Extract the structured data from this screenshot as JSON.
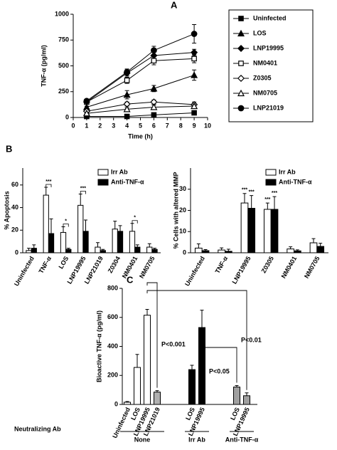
{
  "chart_data": [
    {
      "type": "line",
      "panel": "A",
      "x": [
        1,
        4,
        6,
        9
      ],
      "xlim": [
        0,
        10
      ],
      "xticks": [
        0,
        1,
        2,
        3,
        4,
        5,
        6,
        7,
        8,
        9,
        10
      ],
      "ylim": [
        0,
        1000
      ],
      "yticks": [
        0,
        250,
        500,
        750,
        1000
      ],
      "xlabel": "Time (h)",
      "ylabel": "TNF-α (pg/ml)",
      "legend": "right",
      "series": [
        {
          "name": "Uninfected",
          "color": "#000000",
          "marker": "square",
          "filled": true,
          "values": [
            10,
            10,
            25,
            45
          ],
          "errors": [
            5,
            5,
            8,
            20
          ]
        },
        {
          "name": "LOS",
          "color": "#000000",
          "marker": "triangle",
          "filled": true,
          "values": [
            100,
            220,
            280,
            410
          ],
          "errors": [
            10,
            40,
            30,
            50
          ]
        },
        {
          "name": "LNP19995",
          "color": "#000000",
          "marker": "diamond",
          "filled": true,
          "values": [
            150,
            430,
            600,
            630
          ],
          "errors": [
            15,
            30,
            40,
            30
          ]
        },
        {
          "name": "NM0401",
          "color": "#000000",
          "marker": "square",
          "filled": false,
          "values": [
            150,
            360,
            550,
            570
          ],
          "errors": [
            15,
            30,
            40,
            40
          ]
        },
        {
          "name": "Z0305",
          "color": "#000000",
          "marker": "diamond",
          "filled": false,
          "values": [
            60,
            130,
            150,
            125
          ],
          "errors": [
            10,
            20,
            20,
            25
          ]
        },
        {
          "name": "NM0705",
          "color": "#000000",
          "marker": "triangle",
          "filled": false,
          "values": [
            40,
            80,
            100,
            110
          ],
          "errors": [
            10,
            15,
            20,
            20
          ]
        },
        {
          "name": "LNP21019",
          "color": "#000000",
          "marker": "circle",
          "filled": true,
          "values": [
            160,
            440,
            650,
            810
          ],
          "errors": [
            15,
            30,
            40,
            90
          ]
        }
      ]
    },
    {
      "type": "grouped-bar",
      "panel": "B",
      "categories": [
        "Uninfected",
        "TNF-α",
        "LOS",
        "LNP19995",
        "LNP21019",
        "Z0304",
        "NM0401",
        "NM0705"
      ],
      "ylim": [
        0,
        75
      ],
      "yticks": [
        0,
        20,
        40,
        60
      ],
      "ylabel": "% Apoptosis",
      "legend": "top-right",
      "series": [
        {
          "name": "Irr Ab",
          "color": "#ffffff",
          "values": [
            2,
            51,
            18,
            42,
            5,
            21,
            19,
            5
          ],
          "errors": [
            2,
            7,
            5,
            10,
            4,
            7,
            7,
            3
          ]
        },
        {
          "name": "Anti-TNF-α",
          "color": "#000000",
          "values": [
            4,
            17,
            3,
            19,
            2,
            19,
            5,
            3
          ],
          "errors": [
            3,
            13,
            1,
            10,
            1,
            5,
            2,
            1
          ]
        }
      ],
      "annotations": [
        {
          "text": "***",
          "category": "TNF-α"
        },
        {
          "text": "*",
          "category": "LOS"
        },
        {
          "text": "***",
          "category": "LNP19995"
        },
        {
          "text": "*",
          "category": "NM0401"
        }
      ]
    },
    {
      "type": "grouped-bar",
      "categories": [
        "Uninfected",
        "TNF-α",
        "LNP19995",
        "Z0305",
        "NM0401",
        "NM0705"
      ],
      "ylim": [
        0,
        40
      ],
      "yticks": [
        0,
        10,
        20,
        30
      ],
      "ylabel": "% Cells with altered MMP",
      "legend": "top-right",
      "series": [
        {
          "name": "Irr Ab",
          "color": "#ffffff",
          "values": [
            2.2,
            1.3,
            23.5,
            20.5,
            1.8,
            4.7
          ],
          "errors": [
            2,
            1,
            4.5,
            3,
            1,
            2
          ]
        },
        {
          "name": "Anti-TNF-α",
          "color": "#000000",
          "values": [
            1,
            0.7,
            21,
            20.5,
            0.9,
            3
          ],
          "errors": [
            0.5,
            1,
            6,
            6,
            0.5,
            1.5
          ]
        }
      ],
      "annotations": [
        {
          "text": "***",
          "category": "LNP19995",
          "series": "Irr Ab"
        },
        {
          "text": "***",
          "category": "LNP19995",
          "series": "Anti-TNF-α"
        },
        {
          "text": "***",
          "category": "Z0305",
          "series": "Irr Ab"
        },
        {
          "text": "***",
          "category": "Z0305",
          "series": "Anti-TNF-α"
        }
      ]
    },
    {
      "type": "bar",
      "panel": "C",
      "categories": [
        "Uninfected",
        "LOS",
        "LNP19995",
        "LNP21019",
        "LOS",
        "LNP19995",
        "LOS",
        "LNP19995"
      ],
      "values": [
        15,
        255,
        615,
        85,
        240,
        530,
        120,
        60
      ],
      "errors": [
        5,
        90,
        40,
        10,
        30,
        120,
        10,
        20
      ],
      "colors": [
        "#ffffff",
        "#ffffff",
        "#ffffff",
        "#b0b0b0",
        "#000000",
        "#000000",
        "#a0a0a0",
        "#a0a0a0"
      ],
      "groups": [
        "None",
        "None",
        "None",
        "None",
        "Irr Ab",
        "Irr Ab",
        "Anti-TNF-α",
        "Anti-TNF-α"
      ],
      "group_title": "Neutralizing Ab",
      "ylim": [
        0,
        800
      ],
      "yticks": [
        0,
        200,
        400,
        600,
        800
      ],
      "ylabel": "Bioactive TNF-α (pg/ml)",
      "annotations": [
        {
          "text": "P<0.001"
        },
        {
          "text": "P<0.05"
        },
        {
          "text": "P<0.01"
        }
      ]
    }
  ]
}
